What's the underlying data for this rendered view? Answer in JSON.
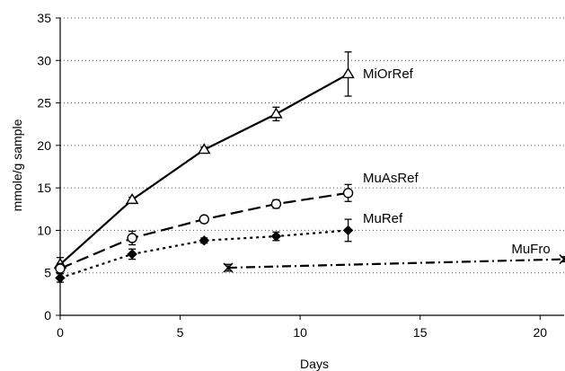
{
  "chart_data": {
    "type": "line",
    "title": "",
    "xlabel": "Days",
    "ylabel": "mmole/g sample",
    "xlim": [
      0,
      21
    ],
    "ylim": [
      0,
      35
    ],
    "xticks": [
      0,
      5,
      10,
      15,
      20
    ],
    "yticks": [
      0,
      5,
      10,
      15,
      20,
      25,
      30,
      35
    ],
    "grid": "horizontal dotted",
    "legend": "labels at line ends",
    "series": [
      {
        "name": "MiOrRef",
        "x": [
          0,
          3,
          6,
          9,
          12
        ],
        "y": [
          6.0,
          13.6,
          19.5,
          23.7,
          28.4
        ],
        "err": [
          0.8,
          0.3,
          0.3,
          0.8,
          2.6
        ],
        "marker": "triangle-open",
        "dash": "solid"
      },
      {
        "name": "MuAsRef",
        "x": [
          0,
          3,
          6,
          9,
          12
        ],
        "y": [
          5.5,
          9.1,
          11.3,
          13.1,
          14.4
        ],
        "err": [
          0.6,
          0.8,
          0.4,
          0.5,
          1.0
        ],
        "marker": "circle-open",
        "dash": "long-dash"
      },
      {
        "name": "MuRef",
        "x": [
          0,
          3,
          6,
          9,
          12
        ],
        "y": [
          4.4,
          7.2,
          8.8,
          9.3,
          10.0
        ],
        "err": [
          0.5,
          0.6,
          0.3,
          0.5,
          1.3
        ],
        "marker": "diamond-filled",
        "dash": "dotted"
      },
      {
        "name": "MuFro",
        "x": [
          7,
          21
        ],
        "y": [
          5.6,
          6.6
        ],
        "err": [
          0.4,
          0.3
        ],
        "marker": "x",
        "dash": "dash-dot"
      }
    ]
  }
}
